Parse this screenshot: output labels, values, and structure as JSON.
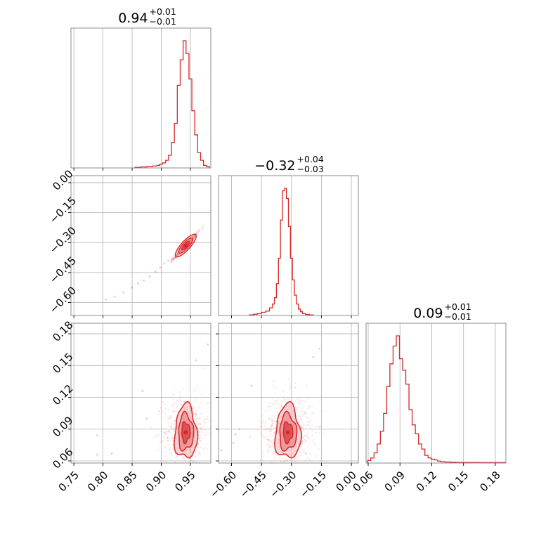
{
  "colors": {
    "series": "#d62728",
    "fill_light": "#f4b4b5",
    "fill_mid": "#e8888a",
    "fill_dark": "#d9474a",
    "grid": "#b0b0b0",
    "frame": "#7f7f7f"
  },
  "chart_data": {
    "type": "corner",
    "grid": true,
    "params": [
      {
        "title": {
          "value": "0.94",
          "plus": "+0.01",
          "minus": "−0.01"
        },
        "range": [
          0.745,
          0.985
        ],
        "ticks": [
          0.75,
          0.8,
          0.85,
          0.9,
          0.95
        ],
        "tick_labels": [
          "0.75",
          "0.80",
          "0.85",
          "0.90",
          "0.95"
        ],
        "hist": {
          "x": [
            0.86,
            0.87,
            0.88,
            0.89,
            0.895,
            0.9,
            0.905,
            0.91,
            0.915,
            0.92,
            0.925,
            0.93,
            0.935,
            0.94,
            0.945,
            0.95,
            0.955,
            0.96,
            0.965,
            0.97,
            0.975,
            0.98
          ],
          "y": [
            0.005,
            0.008,
            0.01,
            0.015,
            0.02,
            0.03,
            0.04,
            0.06,
            0.1,
            0.2,
            0.35,
            0.65,
            0.85,
            1.0,
            0.9,
            0.7,
            0.45,
            0.26,
            0.12,
            0.06,
            0.02,
            0.01
          ]
        }
      },
      {
        "title": {
          "value": "−0.32",
          "plus": "+0.04",
          "minus": "−0.03"
        },
        "range": [
          -0.665,
          0.035
        ],
        "ticks": [
          -0.6,
          -0.45,
          -0.3,
          -0.15,
          0.0
        ],
        "tick_labels": [
          "−0.60",
          "−0.45",
          "−0.30",
          "−0.15",
          "0.00"
        ],
        "hist": {
          "x": [
            -0.5,
            -0.48,
            -0.46,
            -0.44,
            -0.42,
            -0.4,
            -0.39,
            -0.38,
            -0.37,
            -0.36,
            -0.35,
            -0.34,
            -0.33,
            -0.32,
            -0.31,
            -0.3,
            -0.29,
            -0.28,
            -0.27,
            -0.26,
            -0.25,
            -0.24,
            -0.22,
            -0.2
          ],
          "y": [
            0.005,
            0.01,
            0.015,
            0.025,
            0.035,
            0.06,
            0.09,
            0.14,
            0.25,
            0.45,
            0.75,
            0.98,
            1.0,
            0.92,
            0.7,
            0.45,
            0.28,
            0.16,
            0.09,
            0.05,
            0.03,
            0.015,
            0.008,
            0.004
          ]
        }
      },
      {
        "title": {
          "value": "0.09",
          "plus": "+0.01",
          "minus": "−0.01"
        },
        "range": [
          0.058,
          0.19
        ],
        "ticks": [
          0.06,
          0.09,
          0.12,
          0.15,
          0.18
        ],
        "tick_labels": [
          "0.06",
          "0.09",
          "0.12",
          "0.15",
          "0.18"
        ],
        "hist": {
          "x": [
            0.061,
            0.064,
            0.067,
            0.07,
            0.073,
            0.076,
            0.079,
            0.082,
            0.085,
            0.088,
            0.091,
            0.094,
            0.097,
            0.1,
            0.103,
            0.106,
            0.109,
            0.112,
            0.115,
            0.118,
            0.121,
            0.124,
            0.127,
            0.13,
            0.135,
            0.14,
            0.145,
            0.15,
            0.16,
            0.17,
            0.18,
            0.188
          ],
          "y": [
            0.02,
            0.04,
            0.08,
            0.15,
            0.25,
            0.39,
            0.6,
            0.78,
            0.92,
            1.0,
            0.82,
            0.73,
            0.62,
            0.42,
            0.3,
            0.23,
            0.15,
            0.11,
            0.06,
            0.04,
            0.03,
            0.025,
            0.015,
            0.01,
            0.008,
            0.006,
            0.005,
            0.004,
            0.004,
            0.003,
            0.003,
            0.003
          ]
        }
      }
    ],
    "pairs": [
      {
        "x_param": 0,
        "y_param": 1,
        "center": [
          0.942,
          -0.315
        ],
        "sd": [
          0.01,
          0.032
        ],
        "corr": 0.985,
        "tail_points": [
          [
            0.89,
            -0.445
          ],
          [
            0.88,
            -0.47
          ],
          [
            0.87,
            -0.49
          ],
          [
            0.86,
            -0.505
          ],
          [
            0.85,
            -0.525
          ],
          [
            0.835,
            -0.55
          ],
          [
            0.82,
            -0.57
          ],
          [
            0.805,
            -0.585
          ],
          [
            0.905,
            -0.405
          ],
          [
            0.898,
            -0.425
          ],
          [
            0.912,
            -0.39
          ],
          [
            0.918,
            -0.38
          ]
        ]
      },
      {
        "x_param": 0,
        "y_param": 2,
        "center": [
          0.942,
          0.087
        ],
        "sd": [
          0.01,
          0.011
        ],
        "corr": 0.0,
        "tail_points": [
          [
            0.79,
            0.084
          ],
          [
            0.815,
            0.067
          ],
          [
            0.79,
            0.066
          ],
          [
            0.868,
            0.126
          ],
          [
            0.875,
            0.1
          ],
          [
            0.98,
            0.17
          ],
          [
            0.96,
            0.155
          ]
        ]
      },
      {
        "x_param": 1,
        "y_param": 2,
        "center": [
          -0.318,
          0.087
        ],
        "sd": [
          0.033,
          0.011
        ],
        "corr": 0.0,
        "tail_points": [
          [
            -0.56,
            0.09
          ],
          [
            -0.59,
            0.077
          ],
          [
            -0.58,
            0.085
          ],
          [
            -0.5,
            0.131
          ],
          [
            -0.16,
            0.166
          ],
          [
            -0.19,
            0.158
          ],
          [
            -0.65,
            0.07
          ]
        ]
      }
    ]
  }
}
